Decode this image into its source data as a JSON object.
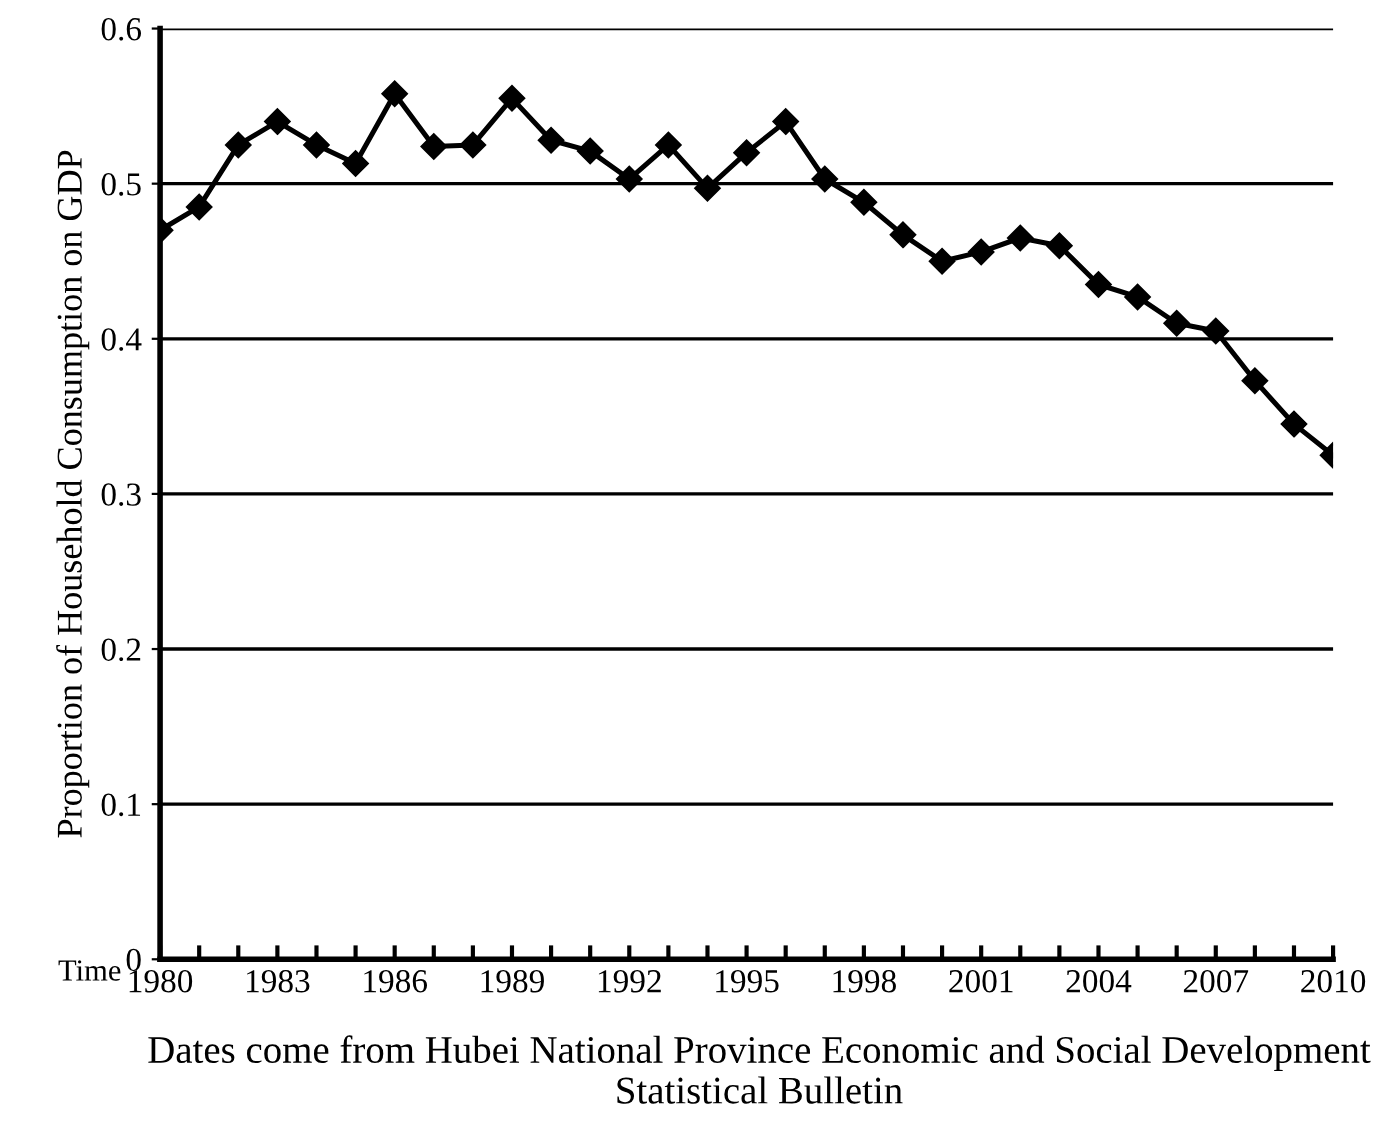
{
  "chart_data": {
    "type": "line",
    "ylabel": "Proportion of Household Consumption on GDP",
    "xlabel": "Time",
    "annotations": [
      "Dates come from Hubei National Province Economic and Social Development Statistical Bulletin"
    ],
    "x": [
      1980,
      1981,
      1982,
      1983,
      1984,
      1985,
      1986,
      1987,
      1988,
      1989,
      1990,
      1991,
      1992,
      1993,
      1994,
      1995,
      1996,
      1997,
      1998,
      1999,
      2000,
      2001,
      2002,
      2003,
      2004,
      2005,
      2006,
      2007,
      2008,
      2009,
      2010
    ],
    "series": [
      {
        "color": "#000000",
        "values": [
          0.47,
          0.485,
          0.525,
          0.54,
          0.525,
          0.513,
          0.558,
          0.524,
          0.525,
          0.555,
          0.528,
          0.521,
          0.503,
          0.525,
          0.497,
          0.52,
          0.54,
          0.503,
          0.488,
          0.467,
          0.45,
          0.456,
          0.465,
          0.46,
          0.435,
          0.427,
          0.41,
          0.405,
          0.373,
          0.345,
          0.325
        ]
      }
    ],
    "xlim": [
      1980,
      2010
    ],
    "xticks": [
      1980,
      {
        "value": 1981,
        "label": null
      },
      {
        "value": 1982,
        "label": null
      },
      1983,
      {
        "value": 1984,
        "label": null
      },
      {
        "value": 1985,
        "label": null
      },
      1986,
      {
        "value": 1987,
        "label": null
      },
      {
        "value": 1988,
        "label": null
      },
      1989,
      {
        "value": 1990,
        "label": null
      },
      {
        "value": 1991,
        "label": null
      },
      1992,
      {
        "value": 1993,
        "label": null
      },
      {
        "value": 1994,
        "label": null
      },
      1995,
      {
        "value": 1996,
        "label": null
      },
      {
        "value": 1997,
        "label": null
      },
      1998,
      {
        "value": 1999,
        "label": null
      },
      {
        "value": 2000,
        "label": null
      },
      2001,
      {
        "value": 2002,
        "label": null
      },
      {
        "value": 2003,
        "label": null
      },
      2004,
      {
        "value": 2005,
        "label": null
      },
      {
        "value": 2006,
        "label": null
      },
      2007,
      {
        "value": 2008,
        "label": null
      },
      {
        "value": 2009,
        "label": null
      },
      2010
    ],
    "ylim": [
      0,
      0.6
    ],
    "yticks": [
      0,
      0.1,
      0.2,
      0.3,
      0.4,
      0.5,
      0.6
    ],
    "grid": "y",
    "marker": "diamond",
    "line_style": "solid"
  }
}
